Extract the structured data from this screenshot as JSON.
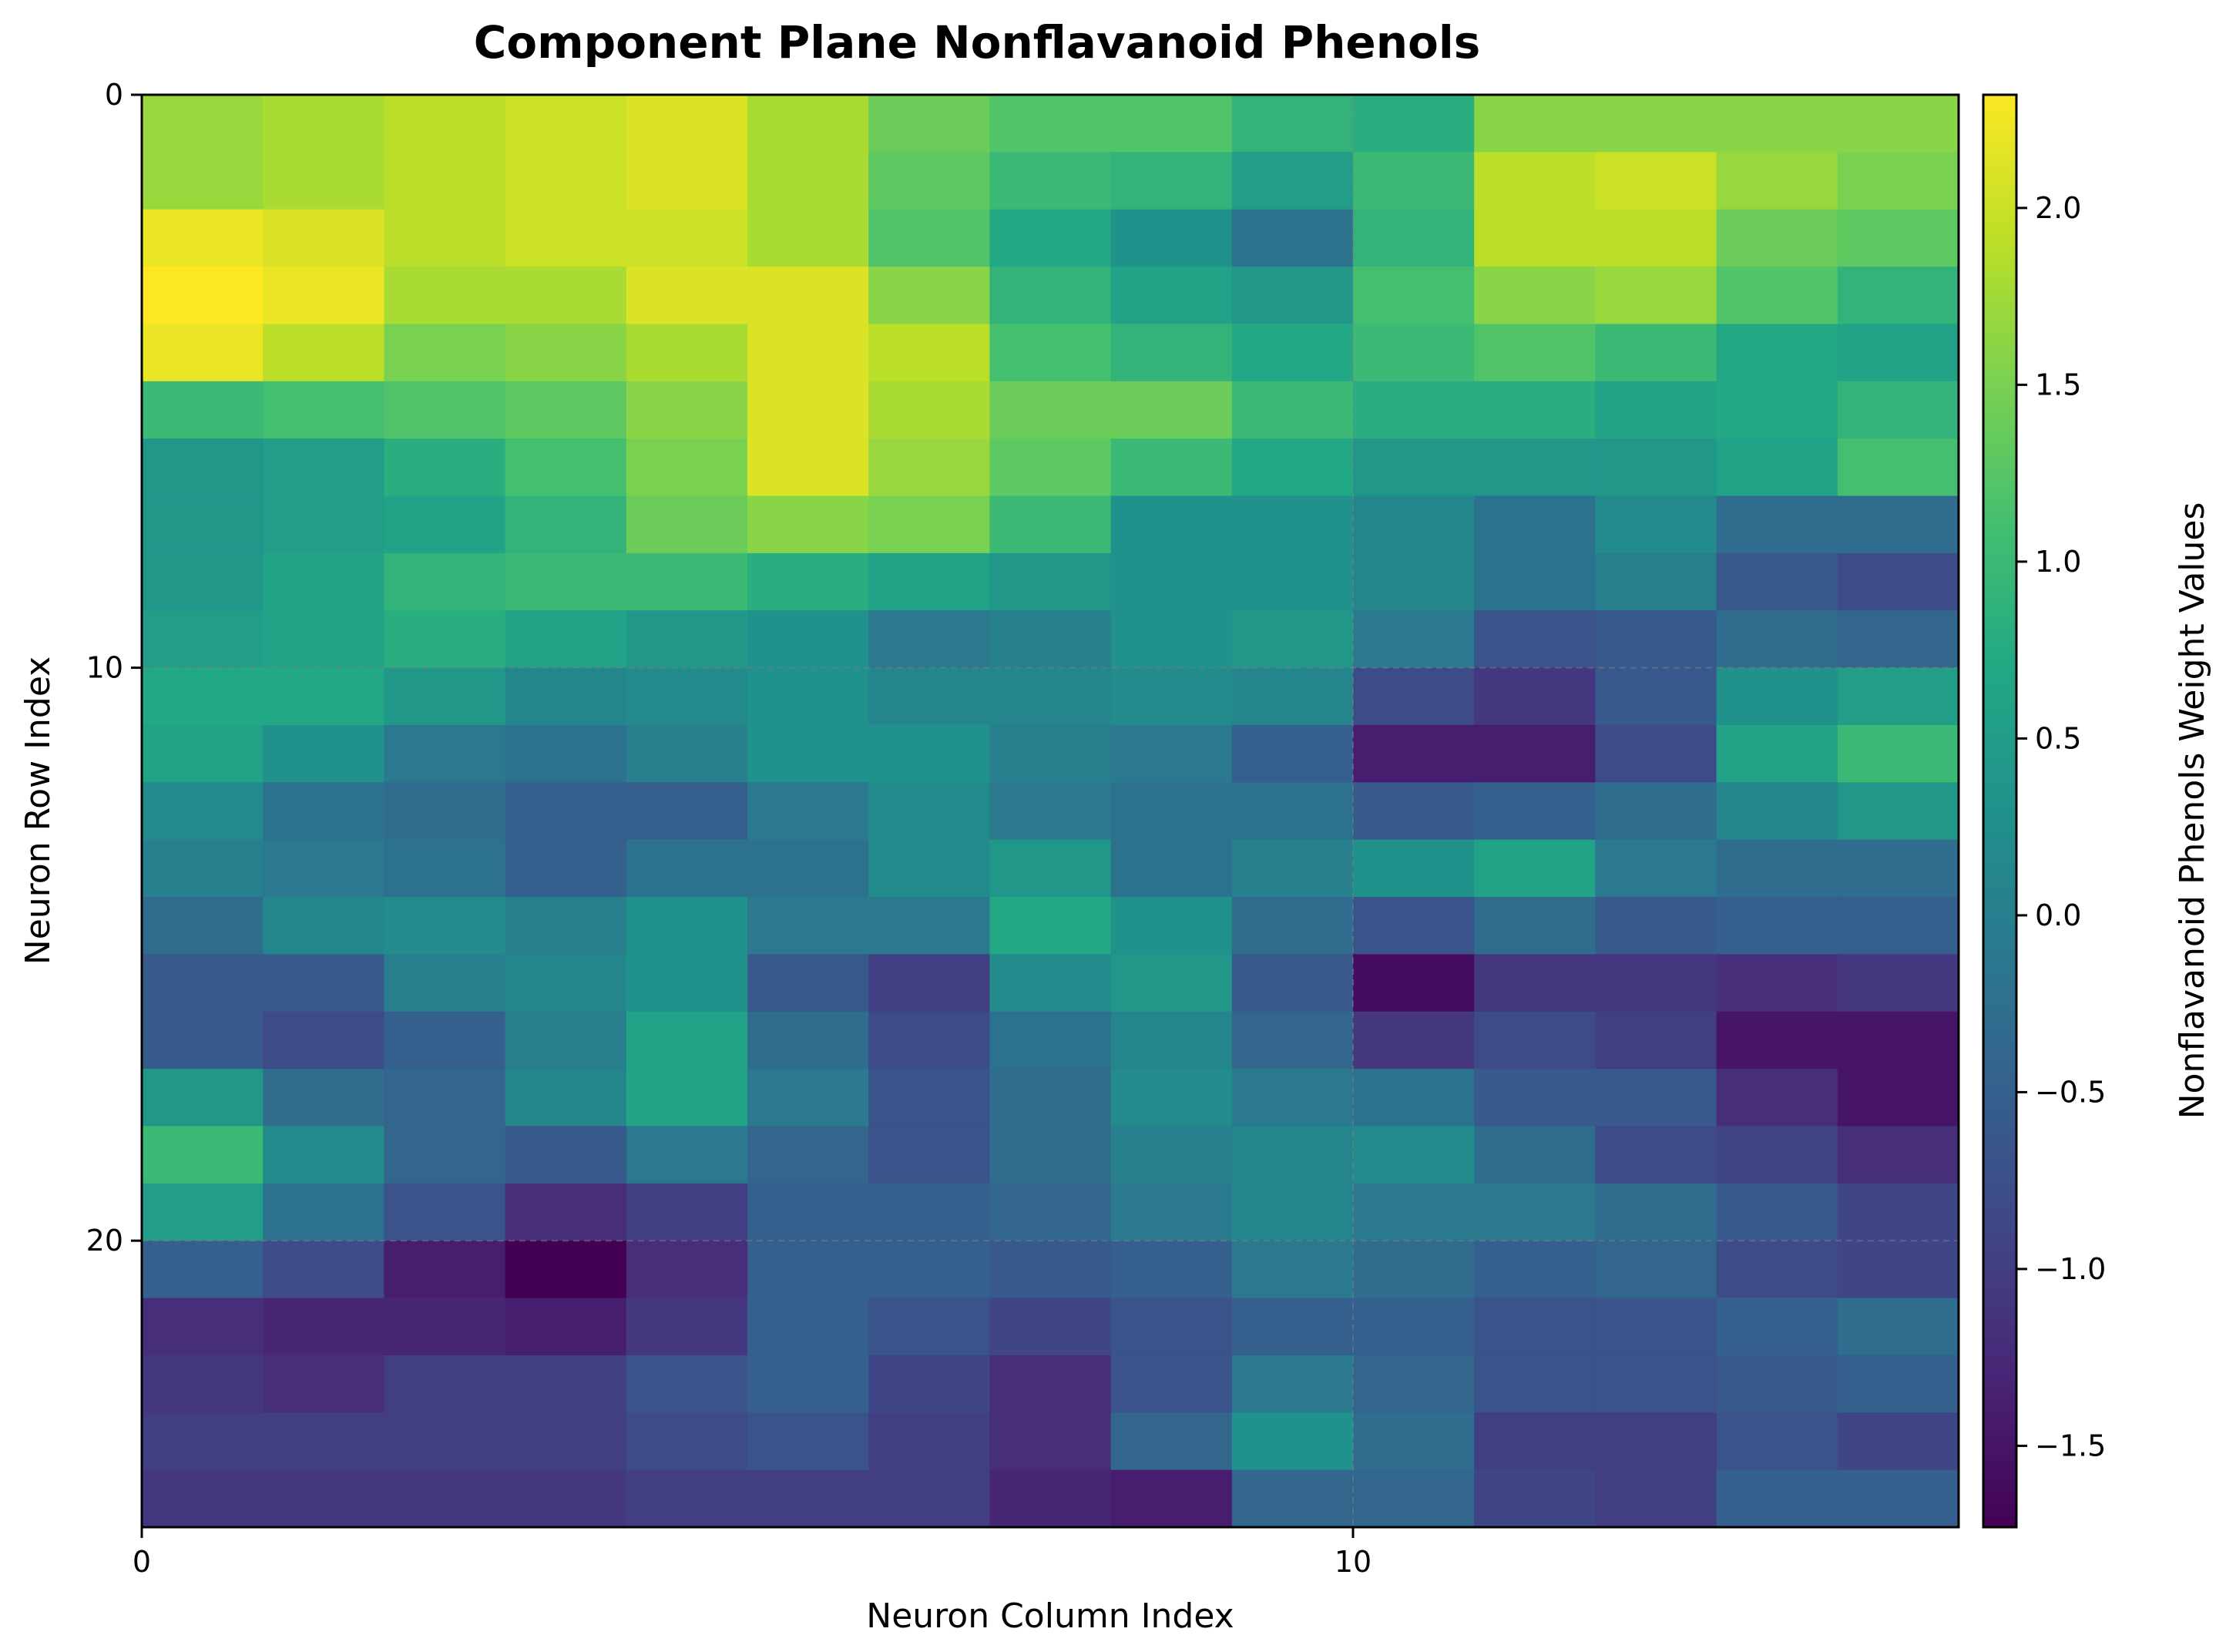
{
  "chart_data": {
    "type": "heatmap",
    "title": "Component Plane Nonflavanoid Phenols",
    "xlabel": "Neuron Column Index",
    "ylabel": "Neuron Row Index",
    "colorbar_label": "Nonflavanoid Phenols Weight Values",
    "colormap": "viridis",
    "vmin": -1.73,
    "vmax": 2.32,
    "xlim": [
      0,
      15
    ],
    "ylim": [
      25,
      0
    ],
    "x_ticks": [
      0,
      10
    ],
    "y_ticks": [
      0,
      10,
      20
    ],
    "colorbar_ticks": [
      -1.5,
      -1.0,
      -0.5,
      0.0,
      0.5,
      1.0,
      1.5,
      2.0
    ],
    "colorbar_tick_labels": [
      "−1.5",
      "−1.0",
      "−0.5",
      "0.0",
      "0.5",
      "1.0",
      "1.5",
      "2.0"
    ],
    "grid": true,
    "n_rows": 25,
    "n_cols": 15,
    "values": [
      [
        1.7,
        1.8,
        1.9,
        2.0,
        2.1,
        1.8,
        1.4,
        1.2,
        1.2,
        0.9,
        0.8,
        1.6,
        1.6,
        1.6,
        1.6
      ],
      [
        1.7,
        1.8,
        1.9,
        2.0,
        2.1,
        1.8,
        1.3,
        1.0,
        0.9,
        0.5,
        1.0,
        1.9,
        2.0,
        1.7,
        1.5
      ],
      [
        2.2,
        2.1,
        1.9,
        2.0,
        2.0,
        1.8,
        1.2,
        0.7,
        0.3,
        -0.2,
        0.9,
        1.9,
        1.9,
        1.4,
        1.3
      ],
      [
        2.32,
        2.2,
        1.8,
        1.8,
        2.1,
        2.1,
        1.6,
        0.9,
        0.6,
        0.4,
        1.1,
        1.6,
        1.7,
        1.2,
        0.9
      ],
      [
        2.2,
        1.9,
        1.5,
        1.6,
        1.8,
        2.1,
        1.9,
        1.1,
        0.9,
        0.7,
        1.0,
        1.2,
        1.0,
        0.7,
        0.6
      ],
      [
        1.0,
        1.1,
        1.2,
        1.3,
        1.6,
        2.1,
        1.8,
        1.4,
        1.4,
        1.0,
        0.8,
        0.8,
        0.6,
        0.7,
        0.9
      ],
      [
        0.4,
        0.5,
        0.8,
        1.1,
        1.5,
        2.1,
        1.7,
        1.3,
        1.0,
        0.7,
        0.4,
        0.4,
        0.4,
        0.6,
        1.1
      ],
      [
        0.4,
        0.5,
        0.6,
        0.9,
        1.4,
        1.6,
        1.5,
        1.0,
        0.3,
        0.3,
        0.1,
        -0.2,
        0.2,
        -0.3,
        -0.3
      ],
      [
        0.4,
        0.6,
        0.9,
        1.0,
        1.0,
        0.8,
        0.6,
        0.4,
        0.3,
        0.3,
        0.1,
        -0.2,
        0.0,
        -0.6,
        -0.8
      ],
      [
        0.5,
        0.6,
        0.8,
        0.6,
        0.4,
        0.3,
        -0.1,
        0.0,
        0.3,
        0.4,
        -0.1,
        -0.7,
        -0.6,
        -0.3,
        -0.4
      ],
      [
        0.7,
        0.7,
        0.4,
        0.1,
        0.2,
        0.3,
        0.1,
        0.1,
        0.2,
        0.1,
        -0.8,
        -1.1,
        -0.6,
        0.3,
        0.5
      ],
      [
        0.6,
        0.3,
        -0.1,
        -0.2,
        0.0,
        0.3,
        0.3,
        0.0,
        -0.1,
        -0.5,
        -1.4,
        -1.4,
        -0.8,
        0.6,
        1.0
      ],
      [
        0.2,
        -0.2,
        -0.3,
        -0.5,
        -0.5,
        -0.1,
        0.2,
        -0.1,
        -0.2,
        -0.2,
        -0.6,
        -0.5,
        -0.3,
        0.1,
        0.4
      ],
      [
        0.0,
        -0.1,
        -0.2,
        -0.5,
        -0.2,
        -0.2,
        0.2,
        0.4,
        -0.2,
        0.0,
        0.3,
        0.6,
        -0.1,
        -0.3,
        -0.3
      ],
      [
        -0.3,
        0.1,
        0.2,
        0.0,
        0.3,
        -0.1,
        -0.1,
        0.7,
        0.3,
        -0.3,
        -0.7,
        -0.3,
        -0.6,
        -0.5,
        -0.5
      ],
      [
        -0.6,
        -0.6,
        0.0,
        0.1,
        0.3,
        -0.6,
        -1.0,
        0.2,
        0.4,
        -0.6,
        -1.6,
        -1.1,
        -1.1,
        -1.2,
        -1.1
      ],
      [
        -0.6,
        -0.8,
        -0.5,
        0.0,
        0.6,
        -0.3,
        -0.8,
        -0.2,
        0.1,
        -0.4,
        -1.1,
        -0.8,
        -1.0,
        -1.5,
        -1.5
      ],
      [
        0.4,
        -0.3,
        -0.4,
        0.1,
        0.6,
        -0.1,
        -0.7,
        -0.3,
        0.2,
        -0.1,
        -0.2,
        -0.6,
        -0.6,
        -1.2,
        -1.5
      ],
      [
        1.0,
        0.2,
        -0.4,
        -0.6,
        -0.1,
        -0.4,
        -0.7,
        -0.3,
        0.0,
        0.1,
        0.2,
        -0.3,
        -0.8,
        -0.9,
        -1.2
      ],
      [
        0.5,
        -0.2,
        -0.7,
        -1.2,
        -1.0,
        -0.5,
        -0.5,
        -0.4,
        -0.1,
        0.1,
        -0.1,
        -0.1,
        -0.3,
        -0.6,
        -0.9
      ],
      [
        -0.5,
        -0.8,
        -1.4,
        -1.73,
        -1.2,
        -0.5,
        -0.5,
        -0.6,
        -0.5,
        -0.1,
        -0.3,
        -0.5,
        -0.4,
        -0.8,
        -0.9
      ],
      [
        -1.2,
        -1.3,
        -1.3,
        -1.4,
        -1.1,
        -0.5,
        -0.7,
        -0.9,
        -0.7,
        -0.5,
        -0.5,
        -0.7,
        -0.7,
        -0.5,
        -0.3
      ],
      [
        -1.1,
        -1.2,
        -1.0,
        -1.0,
        -0.7,
        -0.5,
        -0.9,
        -1.2,
        -0.7,
        -0.1,
        -0.4,
        -0.7,
        -0.7,
        -0.6,
        -0.5
      ],
      [
        -1.0,
        -1.0,
        -1.0,
        -1.0,
        -0.8,
        -0.7,
        -1.0,
        -1.2,
        -0.4,
        0.3,
        -0.3,
        -1.0,
        -1.0,
        -0.7,
        -0.9
      ],
      [
        -1.1,
        -1.1,
        -1.1,
        -1.1,
        -1.0,
        -1.0,
        -1.0,
        -1.3,
        -1.4,
        -0.4,
        -0.4,
        -0.9,
        -1.0,
        -0.5,
        -0.5
      ]
    ]
  }
}
